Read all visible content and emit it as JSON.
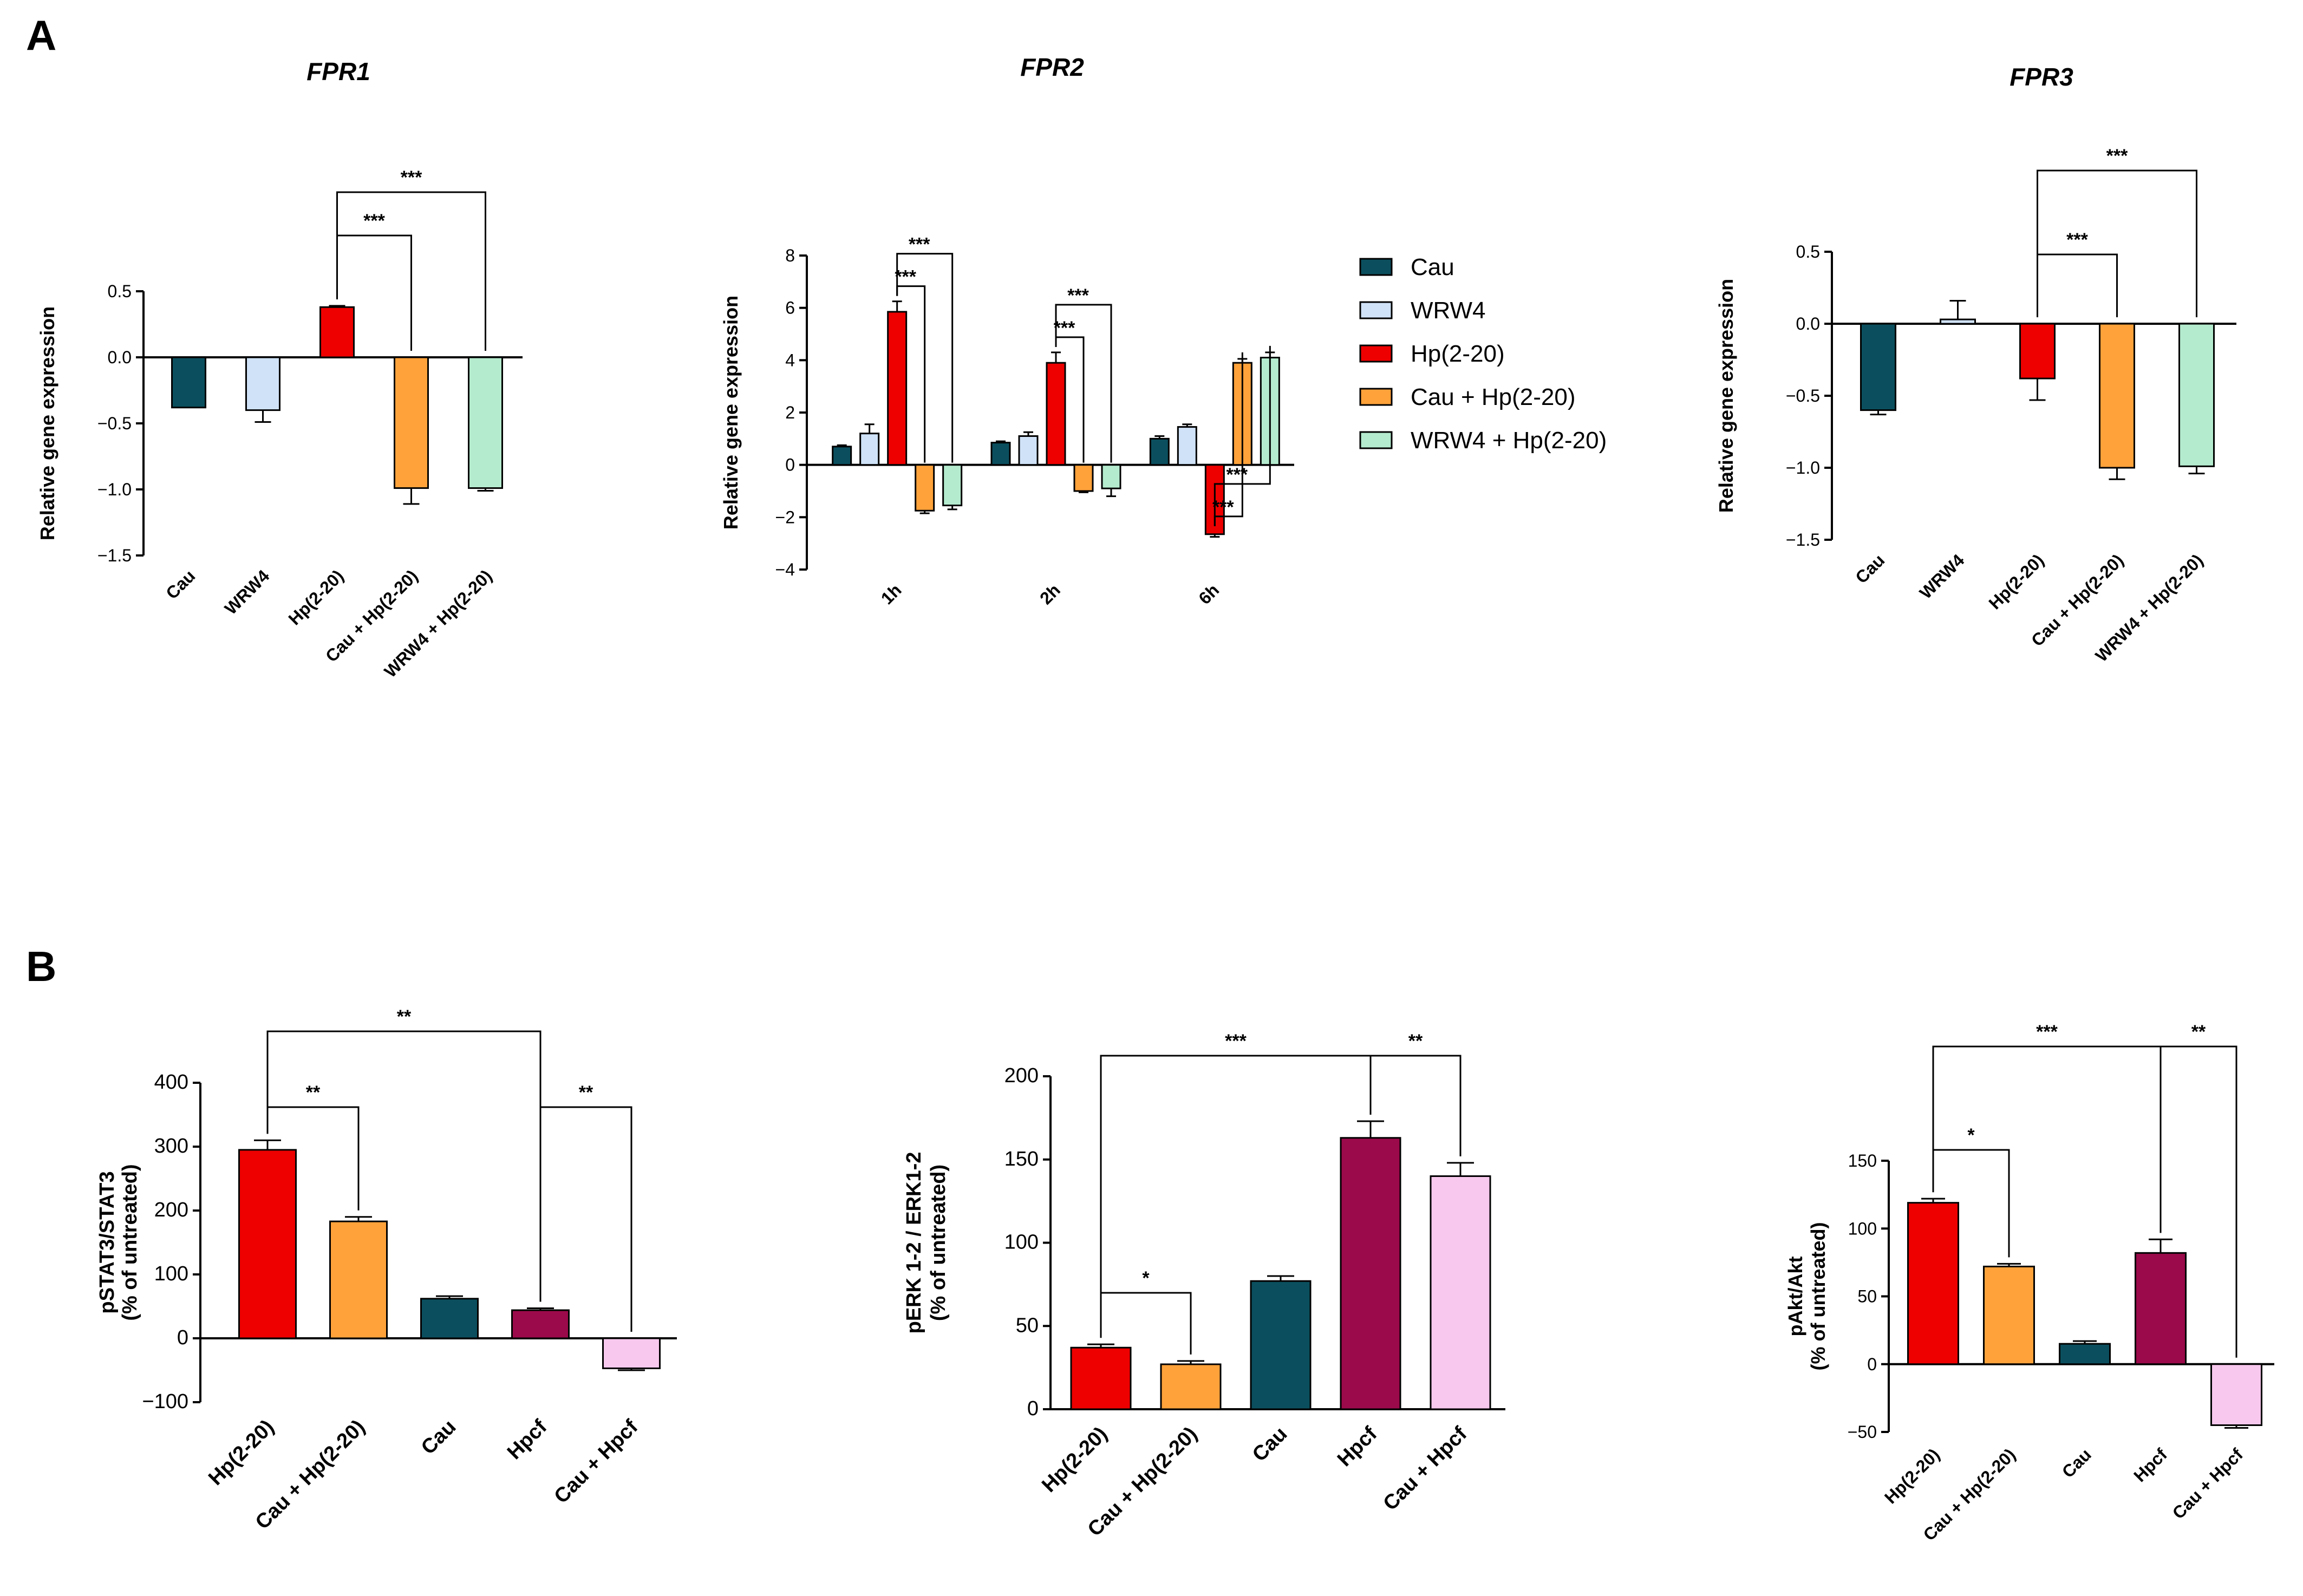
{
  "panels": {
    "a": "A",
    "b": "B"
  },
  "colors": {
    "Cau": "#0b4f5e",
    "WRW4": "#cfe2f7",
    "Hp(2-20)": "#ee0000",
    "Cau + Hp(2-20)": "#ffa23a",
    "WRW4 + Hp(2-20)": "#b4ebce",
    "Hpcf": "#9b0a4b",
    "Cau + Hpcf": "#f8c8ee"
  },
  "legend": [
    "Cau",
    "WRW4",
    "Hp(2-20)",
    "Cau + Hp(2-20)",
    "WRW4 + Hp(2-20)"
  ],
  "chart_data": [
    {
      "id": "fpr1",
      "type": "bar",
      "title": "FPR1",
      "ylabel": "Relative gene expression",
      "xlabel": "",
      "ylim": [
        -1.5,
        0.5
      ],
      "yticks": [
        0.5,
        0.0,
        -0.5,
        -1.0,
        -1.5
      ],
      "ytick_labels": [
        "0.5",
        "0.0",
        "−0.5",
        "−1.0",
        "−1.5"
      ],
      "categories": [
        "Cau",
        "WRW4",
        "Hp(2-20)",
        "Cau + Hp(2-20)",
        "WRW4 + Hp(2-20)"
      ],
      "values": [
        -0.38,
        -0.4,
        0.38,
        -0.99,
        -0.99
      ],
      "errors": [
        0.0,
        0.09,
        0.01,
        0.12,
        0.02
      ],
      "significance": [
        {
          "from": 2,
          "to": 3,
          "label": "***"
        },
        {
          "from": 2,
          "to": 4,
          "label": "***"
        }
      ]
    },
    {
      "id": "fpr2",
      "type": "bar",
      "title": "FPR2",
      "ylabel": "Relative gene expression",
      "xlabel": "",
      "ylim": [
        -4,
        8
      ],
      "yticks": [
        8,
        6,
        4,
        2,
        0,
        -2,
        -4
      ],
      "ytick_labels": [
        "8",
        "6",
        "4",
        "2",
        "0",
        "−2",
        "−4"
      ],
      "categories": [
        "1h",
        "2h",
        "6h"
      ],
      "series": [
        {
          "name": "Cau",
          "values": [
            0.7,
            0.85,
            1.0
          ],
          "errors": [
            0.05,
            0.05,
            0.1
          ]
        },
        {
          "name": "WRW4",
          "values": [
            1.2,
            1.1,
            1.45
          ],
          "errors": [
            0.35,
            0.15,
            0.1
          ]
        },
        {
          "name": "Hp(2-20)",
          "values": [
            5.85,
            3.9,
            -2.65
          ],
          "errors": [
            0.4,
            0.4,
            0.1
          ]
        },
        {
          "name": "Cau + Hp(2-20)",
          "values": [
            -1.75,
            -1.0,
            3.9
          ],
          "errors": [
            0.1,
            0.05,
            0.15
          ]
        },
        {
          "name": "WRW4 + Hp(2-20)",
          "values": [
            -1.55,
            -0.9,
            4.1
          ],
          "errors": [
            0.15,
            0.3,
            0.2
          ]
        }
      ],
      "significance": [
        {
          "group": 0,
          "from": 2,
          "to": 3,
          "label": "***"
        },
        {
          "group": 0,
          "from": 2,
          "to": 4,
          "label": "***"
        },
        {
          "group": 1,
          "from": 2,
          "to": 3,
          "label": "***"
        },
        {
          "group": 1,
          "from": 2,
          "to": 4,
          "label": "***"
        },
        {
          "group": 2,
          "from": 2,
          "to": 3,
          "label": "***"
        },
        {
          "group": 2,
          "from": 2,
          "to": 4,
          "label": "***"
        }
      ]
    },
    {
      "id": "fpr3",
      "type": "bar",
      "title": "FPR3",
      "ylabel": "Relative gene expression",
      "xlabel": "",
      "ylim": [
        -1.5,
        0.5
      ],
      "yticks": [
        0.5,
        0.0,
        -0.5,
        -1.0,
        -1.5
      ],
      "ytick_labels": [
        "0.5",
        "0.0",
        "−0.5",
        "−1.0",
        "−1.5"
      ],
      "categories": [
        "Cau",
        "WRW4",
        "Hp(2-20)",
        "Cau + Hp(2-20)",
        "WRW4 + Hp(2-20)"
      ],
      "values": [
        -0.6,
        0.03,
        -0.38,
        -1.0,
        -0.99
      ],
      "errors": [
        0.03,
        0.13,
        0.15,
        0.08,
        0.05
      ],
      "significance": [
        {
          "from": 2,
          "to": 3,
          "label": "***"
        },
        {
          "from": 2,
          "to": 4,
          "label": "***"
        }
      ]
    },
    {
      "id": "stat3",
      "type": "bar",
      "title": "",
      "ylabel": "pSTAT3/STAT3",
      "ylabel2": "(% of untreated)",
      "xlabel": "",
      "ylim": [
        -100,
        400
      ],
      "yticks": [
        400,
        300,
        200,
        100,
        0,
        -100
      ],
      "ytick_labels": [
        "400",
        "300",
        "200",
        "100",
        "0",
        "−100"
      ],
      "categories": [
        "Hp(2-20)",
        "Cau + Hp(2-20)",
        "Cau",
        "Hpcf",
        "Cau + Hpcf"
      ],
      "values": [
        295,
        183,
        62,
        44,
        -47
      ],
      "errors": [
        15,
        7,
        4,
        3,
        3
      ],
      "significance": [
        {
          "from": 0,
          "to": 1,
          "label": "**"
        },
        {
          "from": 0,
          "to": 3,
          "label": "**"
        },
        {
          "from": 3,
          "to": 4,
          "label": "**"
        }
      ]
    },
    {
      "id": "erk",
      "type": "bar",
      "title": "",
      "ylabel": "pERK 1-2 / ERK1-2",
      "ylabel2": "(% of untreated)",
      "xlabel": "",
      "ylim": [
        0,
        200
      ],
      "yticks": [
        200,
        150,
        100,
        50,
        0
      ],
      "ytick_labels": [
        "200",
        "150",
        "100",
        "50",
        "0"
      ],
      "categories": [
        "Hp(2-20)",
        "Cau + Hp(2-20)",
        "Cau",
        "Hpcf",
        "Cau + Hpcf"
      ],
      "values": [
        37,
        27,
        77,
        163,
        140
      ],
      "errors": [
        2,
        2,
        3,
        10,
        8
      ],
      "significance": [
        {
          "from": 0,
          "to": 1,
          "label": "*"
        },
        {
          "from": 0,
          "to": 3,
          "label": "***"
        },
        {
          "from": 3,
          "to": 4,
          "label": "**"
        }
      ]
    },
    {
      "id": "akt",
      "type": "bar",
      "title": "",
      "ylabel": "pAkt/Akt",
      "ylabel2": "(% of untreated)",
      "xlabel": "",
      "ylim": [
        -50,
        150
      ],
      "yticks": [
        150,
        100,
        50,
        0,
        -50
      ],
      "ytick_labels": [
        "150",
        "100",
        "50",
        "0",
        "−50"
      ],
      "categories": [
        "Hp(2-20)",
        "Cau + Hp(2-20)",
        "Cau",
        "Hpcf",
        "Cau + Hpcf"
      ],
      "values": [
        119,
        72,
        15,
        82,
        -45
      ],
      "errors": [
        3,
        2,
        2,
        10,
        2
      ],
      "significance": [
        {
          "from": 0,
          "to": 1,
          "label": "*"
        },
        {
          "from": 0,
          "to": 3,
          "label": "***"
        },
        {
          "from": 3,
          "to": 4,
          "label": "**"
        }
      ]
    }
  ]
}
